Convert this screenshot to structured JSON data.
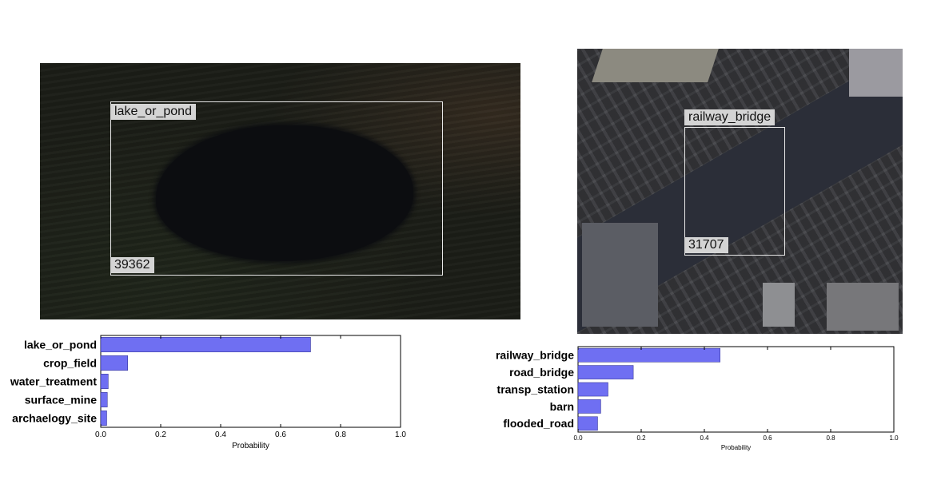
{
  "panels": [
    {
      "image_alt": "Satellite image of a lake or pond",
      "box_label": "lake_or_pond",
      "box_id": "39362"
    },
    {
      "image_alt": "Satellite image of a railway bridge in a city",
      "box_label": "railway_bridge",
      "box_id": "31707"
    }
  ],
  "chart_data": [
    {
      "type": "bar",
      "orientation": "horizontal",
      "categories": [
        "lake_or_pond",
        "crop_field",
        "water_treatment",
        "surface_mine",
        "archaelogy_site"
      ],
      "values": [
        0.7,
        0.09,
        0.025,
        0.022,
        0.02
      ],
      "xlabel": "Probability",
      "xlim": [
        0,
        1.0
      ],
      "xticks": [
        "0.0",
        "0.2",
        "0.4",
        "0.6",
        "0.8",
        "1.0"
      ],
      "bar_color": "#6f6ff2",
      "grid": false
    },
    {
      "type": "bar",
      "orientation": "horizontal",
      "categories": [
        "railway_bridge",
        "road_bridge",
        "transp_station",
        "barn",
        "flooded_road"
      ],
      "values": [
        0.45,
        0.175,
        0.095,
        0.072,
        0.062
      ],
      "xlabel": "Probability",
      "xlim": [
        0,
        1.0
      ],
      "xticks": [
        "0.0",
        "0.2",
        "0.4",
        "0.6",
        "0.8",
        "1.0"
      ],
      "bar_color": "#6f6ff2",
      "grid": false
    }
  ]
}
